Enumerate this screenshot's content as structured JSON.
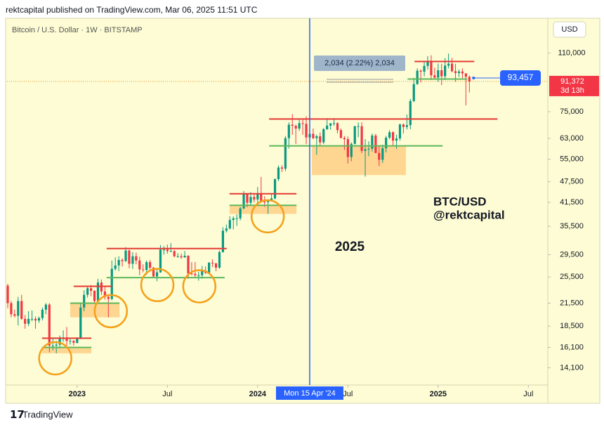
{
  "header": "rektcapital published on TradingView.com, Mar 06, 2025 11:51 UTC",
  "footer": "TradingView",
  "chart_data": {
    "type": "candlestick",
    "symbol": "Bitcoin / U.S. Dollar · 1W · BITSTAMP",
    "currency": "USD",
    "up_color": "#089981",
    "down_color": "#f23645",
    "log_scale": true,
    "ylim": [
      12600,
      138000
    ],
    "yticks": [
      {
        "value": 110000,
        "label": "110,000"
      },
      {
        "value": 75000,
        "label": "75,000"
      },
      {
        "value": 63000,
        "label": "63,000"
      },
      {
        "value": 55000,
        "label": "55,000"
      },
      {
        "value": 47500,
        "label": "47,500"
      },
      {
        "value": 41500,
        "label": "41,500"
      },
      {
        "value": 35500,
        "label": "35,500"
      },
      {
        "value": 29500,
        "label": "29,500"
      },
      {
        "value": 25500,
        "label": "25,500"
      },
      {
        "value": 21500,
        "label": "21,500"
      },
      {
        "value": 18500,
        "label": "18,500"
      },
      {
        "value": 16100,
        "label": "16,100"
      },
      {
        "value": 14100,
        "label": "14,100"
      }
    ],
    "xlim": [
      -0.2,
      155.6
    ],
    "xticks": [
      {
        "value": 20,
        "label": "2023"
      },
      {
        "value": 46,
        "label": "Jul"
      },
      {
        "value": 72,
        "label": "2024"
      },
      {
        "value": 98,
        "label": "Jul"
      },
      {
        "value": 124,
        "label": "2025"
      },
      {
        "value": 150,
        "label": "Jul"
      }
    ],
    "ohlc": [
      [
        24100,
        24400,
        20800,
        21500
      ],
      [
        21500,
        21800,
        19600,
        20000
      ],
      [
        20000,
        20600,
        19600,
        19800
      ],
      [
        19800,
        22400,
        18600,
        21800
      ],
      [
        21800,
        22700,
        19300,
        19400
      ],
      [
        19400,
        19900,
        18200,
        18800
      ],
      [
        18800,
        20400,
        18500,
        19400
      ],
      [
        19400,
        20500,
        19100,
        19400
      ],
      [
        19400,
        19700,
        18200,
        19200
      ],
      [
        19200,
        19700,
        18900,
        19500
      ],
      [
        19500,
        20900,
        19200,
        20600
      ],
      [
        20600,
        21500,
        20000,
        21300
      ],
      [
        21300,
        21500,
        15600,
        16300
      ],
      [
        16300,
        17200,
        15800,
        16300
      ],
      [
        16300,
        16800,
        15500,
        16400
      ],
      [
        16400,
        17400,
        16000,
        17100
      ],
      [
        17100,
        18000,
        16700,
        17100
      ],
      [
        17100,
        18400,
        16300,
        16800
      ],
      [
        16800,
        17100,
        16400,
        16800
      ],
      [
        16800,
        16900,
        16300,
        16600
      ],
      [
        16600,
        17200,
        16500,
        17100
      ],
      [
        17100,
        21400,
        17000,
        20900
      ],
      [
        20900,
        23400,
        20400,
        22700
      ],
      [
        22700,
        23900,
        22300,
        23700
      ],
      [
        23700,
        24200,
        22500,
        23300
      ],
      [
        23300,
        23400,
        21400,
        21800
      ],
      [
        21800,
        25200,
        21400,
        24600
      ],
      [
        24600,
        25100,
        22700,
        23200
      ],
      [
        23200,
        23900,
        22000,
        22400
      ],
      [
        22400,
        22600,
        19600,
        22100
      ],
      [
        22100,
        28400,
        21900,
        26900
      ],
      [
        26900,
        29000,
        26600,
        27500
      ],
      [
        27500,
        29200,
        26500,
        28500
      ],
      [
        28500,
        28800,
        27300,
        28300
      ],
      [
        28300,
        31000,
        28100,
        30300
      ],
      [
        30300,
        30500,
        27000,
        27800
      ],
      [
        27800,
        30000,
        26900,
        29200
      ],
      [
        29200,
        29900,
        27700,
        28400
      ],
      [
        28400,
        29100,
        25800,
        26800
      ],
      [
        26800,
        27700,
        26300,
        26700
      ],
      [
        26700,
        28400,
        25900,
        28100
      ],
      [
        28100,
        28500,
        26800,
        27100
      ],
      [
        27100,
        27200,
        25400,
        25600
      ],
      [
        25600,
        26800,
        24800,
        26300
      ],
      [
        26300,
        31400,
        26200,
        30500
      ],
      [
        30500,
        31200,
        29500,
        30500
      ],
      [
        30500,
        31500,
        29700,
        30200
      ],
      [
        30200,
        31800,
        30000,
        30200
      ],
      [
        30200,
        30400,
        29000,
        29200
      ],
      [
        29200,
        29800,
        28900,
        29200
      ],
      [
        29200,
        29700,
        28700,
        29000
      ],
      [
        29000,
        30200,
        28900,
        29300
      ],
      [
        29300,
        29400,
        25200,
        26100
      ],
      [
        26100,
        28100,
        25800,
        26000
      ],
      [
        26000,
        28100,
        25400,
        25800
      ],
      [
        25800,
        26400,
        24900,
        25800
      ],
      [
        25800,
        27400,
        25200,
        26500
      ],
      [
        26500,
        27300,
        26000,
        26200
      ],
      [
        26200,
        28100,
        26000,
        28000
      ],
      [
        28000,
        28600,
        27200,
        27900
      ],
      [
        27900,
        27900,
        26500,
        27100
      ],
      [
        27100,
        30300,
        26900,
        30000
      ],
      [
        30000,
        35300,
        29900,
        34500
      ],
      [
        34500,
        35900,
        34100,
        35000
      ],
      [
        35000,
        37900,
        34800,
        37000
      ],
      [
        37000,
        37900,
        34800,
        37400
      ],
      [
        37400,
        38400,
        35600,
        37400
      ],
      [
        37400,
        40300,
        36900,
        39900
      ],
      [
        39900,
        44700,
        39700,
        43800
      ],
      [
        43800,
        44000,
        40200,
        41400
      ],
      [
        41400,
        44400,
        40600,
        43000
      ],
      [
        43000,
        43800,
        41500,
        42300
      ],
      [
        42300,
        45900,
        40800,
        43900
      ],
      [
        43900,
        49000,
        41500,
        41700
      ],
      [
        41700,
        43200,
        40300,
        41600
      ],
      [
        41600,
        42300,
        38500,
        42000
      ],
      [
        42000,
        43800,
        41900,
        42600
      ],
      [
        42600,
        48500,
        42300,
        48300
      ],
      [
        48300,
        52800,
        47700,
        52100
      ],
      [
        52100,
        52900,
        50600,
        51700
      ],
      [
        51700,
        64000,
        50900,
        63100
      ],
      [
        63100,
        70000,
        59000,
        68900
      ],
      [
        68900,
        73800,
        64500,
        68400
      ],
      [
        68400,
        68900,
        60800,
        67200
      ],
      [
        67200,
        71700,
        66200,
        69600
      ],
      [
        69600,
        71400,
        64500,
        69300
      ],
      [
        69300,
        72800,
        60700,
        63400
      ],
      [
        63400,
        66900,
        59700,
        64900
      ],
      [
        64900,
        67200,
        62700,
        63100
      ],
      [
        63100,
        64600,
        56600,
        63900
      ],
      [
        63900,
        65500,
        60200,
        61400
      ],
      [
        61400,
        67400,
        60700,
        66900
      ],
      [
        66900,
        71900,
        66600,
        68500
      ],
      [
        68500,
        69600,
        66700,
        69500
      ],
      [
        69600,
        71900,
        68400,
        69600
      ],
      [
        69600,
        70000,
        65100,
        66500
      ],
      [
        66500,
        67200,
        63000,
        63200
      ],
      [
        63200,
        64000,
        58400,
        62700
      ],
      [
        62700,
        63800,
        53500,
        55800
      ],
      [
        55800,
        61400,
        54300,
        60800
      ],
      [
        60800,
        68400,
        60600,
        68200
      ],
      [
        68200,
        69900,
        63500,
        68200
      ],
      [
        68200,
        70000,
        57200,
        58100
      ],
      [
        58100,
        62700,
        49100,
        58700
      ],
      [
        58700,
        61800,
        56100,
        58900
      ],
      [
        58900,
        65000,
        57800,
        64200
      ],
      [
        64200,
        64900,
        57200,
        57300
      ],
      [
        57300,
        59800,
        52600,
        54800
      ],
      [
        54800,
        60500,
        53700,
        59100
      ],
      [
        59100,
        64100,
        57500,
        63300
      ],
      [
        63300,
        66500,
        62700,
        65600
      ],
      [
        65600,
        66000,
        59800,
        62100
      ],
      [
        62100,
        64500,
        58900,
        63000
      ],
      [
        63000,
        69400,
        62100,
        69000
      ],
      [
        69000,
        69500,
        65100,
        67900
      ],
      [
        67900,
        73600,
        66800,
        68700
      ],
      [
        68700,
        81500,
        66900,
        80400
      ],
      [
        80400,
        93500,
        79800,
        89800
      ],
      [
        89800,
        99600,
        89400,
        98000
      ],
      [
        98000,
        98800,
        90800,
        97400
      ],
      [
        97400,
        104000,
        94500,
        101100
      ],
      [
        101100,
        107800,
        98800,
        104500
      ],
      [
        104500,
        108400,
        92200,
        95100
      ],
      [
        95100,
        99900,
        92500,
        93700
      ],
      [
        93700,
        102700,
        91200,
        98300
      ],
      [
        98300,
        102500,
        89300,
        94500
      ],
      [
        94500,
        106400,
        92200,
        101300
      ],
      [
        101300,
        109600,
        99500,
        102600
      ],
      [
        102600,
        106500,
        97000,
        97700
      ],
      [
        97700,
        102500,
        91200,
        96500
      ],
      [
        96500,
        98800,
        94100,
        97500
      ],
      [
        97500,
        99500,
        93400,
        96300
      ],
      [
        96300,
        96500,
        78200,
        94200
      ],
      [
        94200,
        95000,
        85100,
        91400
      ]
    ],
    "levels": [
      {
        "price": 104100,
        "from": 117.2,
        "to": 134.4,
        "color": "#e53935"
      },
      {
        "price": 92800,
        "from": 115.2,
        "to": 132.4,
        "color": "#5cb85c"
      },
      {
        "price": 71500,
        "from": 75.3,
        "to": 141.1,
        "color": "#e53935"
      },
      {
        "price": 60000,
        "from": 75.3,
        "to": 125.3,
        "color": "#5cb85c"
      },
      {
        "price": 43900,
        "from": 63.9,
        "to": 83.2,
        "color": "#e53935"
      },
      {
        "price": 40700,
        "from": 63.9,
        "to": 83.2,
        "color": "#5cb85c"
      },
      {
        "price": 30700,
        "from": 28.5,
        "to": 63.1,
        "color": "#e53935"
      },
      {
        "price": 25400,
        "from": 28.5,
        "to": 62.5,
        "color": "#5cb85c"
      },
      {
        "price": 24000,
        "from": 19.0,
        "to": 30.1,
        "color": "#e53935"
      },
      {
        "price": 21500,
        "from": 18.0,
        "to": 32.2,
        "color": "#5cb85c"
      },
      {
        "price": 17100,
        "from": 9.9,
        "to": 24.1,
        "color": "#e53935"
      },
      {
        "price": 16100,
        "from": 9.9,
        "to": 24.1,
        "color": "#5cb85c"
      }
    ],
    "zones": [
      {
        "top": 60000,
        "bottom": 49600,
        "from": 87.6,
        "to": 114.7
      },
      {
        "top": 40700,
        "bottom": 38500,
        "from": 63.9,
        "to": 83.2
      },
      {
        "top": 21500,
        "bottom": 19600,
        "from": 18.0,
        "to": 32.2
      },
      {
        "top": 16100,
        "bottom": 15500,
        "from": 9.9,
        "to": 24.1
      }
    ],
    "circles": [
      {
        "x": 13.7,
        "price": 15000
      },
      {
        "x": 29.7,
        "price": 20400
      },
      {
        "x": 43.1,
        "price": 24200
      },
      {
        "x": 55.2,
        "price": 24000
      },
      {
        "x": 74.9,
        "price": 37900
      }
    ],
    "measure_label": "2,034 (2.22%) 2,034",
    "last_price": {
      "value": 91372,
      "label": "91,372",
      "countdown": "3d 13h"
    },
    "alert_price": {
      "value": 93457,
      "label": "93,457"
    },
    "crosshair": {
      "x": 87,
      "label": "Mon 15 Apr '24"
    },
    "annotations": [
      "2025",
      "BTC/USD",
      "@rektcapital"
    ]
  }
}
